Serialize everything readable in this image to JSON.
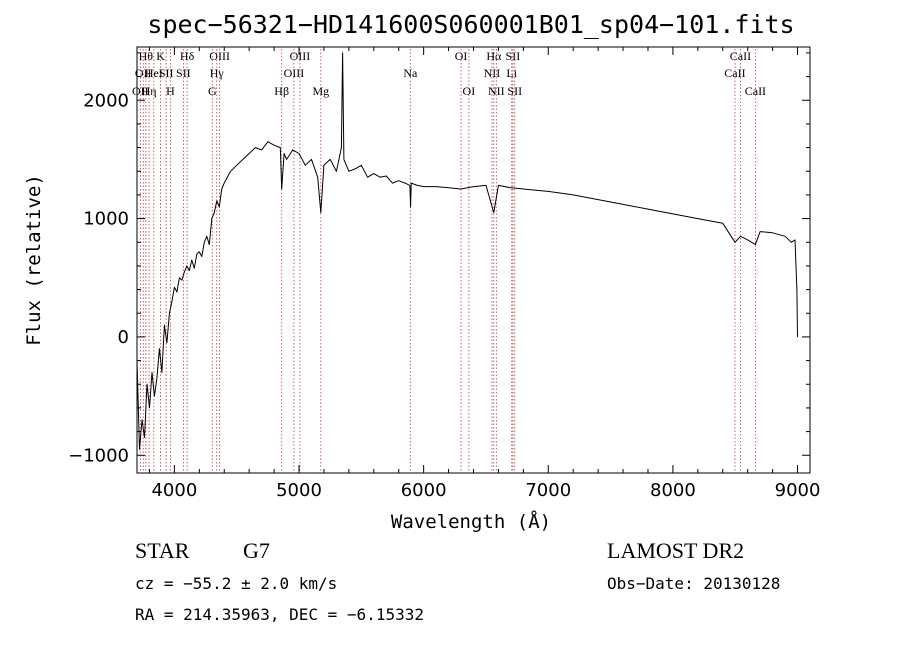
{
  "chart_data": {
    "type": "line",
    "title": "spec−56321−HD141600S060001B01_sp04−101.fits",
    "xlabel": "Wavelength (Å)",
    "ylabel": "Flux (relative)",
    "xlim": [
      3700,
      9100
    ],
    "ylim": [
      -1150,
      2450
    ],
    "x_ticks": [
      {
        "value": 4000,
        "label": "4000"
      },
      {
        "value": 5000,
        "label": "5000"
      },
      {
        "value": 6000,
        "label": "6000"
      },
      {
        "value": 7000,
        "label": "7000"
      },
      {
        "value": 8000,
        "label": "8000"
      },
      {
        "value": 9000,
        "label": "9000"
      }
    ],
    "y_ticks": [
      {
        "value": -1000,
        "label": "−1000"
      },
      {
        "value": 0,
        "label": "0"
      },
      {
        "value": 1000,
        "label": "1000"
      },
      {
        "value": 2000,
        "label": "2000"
      }
    ],
    "series": [
      {
        "color": "#000000",
        "x": [
          3700,
          3720,
          3740,
          3760,
          3780,
          3800,
          3820,
          3840,
          3860,
          3880,
          3900,
          3920,
          3940,
          3960,
          3980,
          4000,
          4020,
          4040,
          4060,
          4080,
          4100,
          4120,
          4140,
          4160,
          4180,
          4200,
          4220,
          4240,
          4260,
          4280,
          4300,
          4320,
          4340,
          4360,
          4380,
          4400,
          4450,
          4500,
          4550,
          4600,
          4650,
          4700,
          4750,
          4800,
          4850,
          4861,
          4880,
          4900,
          4950,
          5000,
          5050,
          5100,
          5150,
          5175,
          5200,
          5250,
          5300,
          5340,
          5350,
          5360,
          5400,
          5450,
          5500,
          5550,
          5600,
          5650,
          5700,
          5750,
          5800,
          5850,
          5890,
          5895,
          5900,
          5950,
          6000,
          6100,
          6200,
          6300,
          6400,
          6500,
          6563,
          6600,
          6700,
          6800,
          6900,
          7000,
          7200,
          7400,
          7600,
          7800,
          8000,
          8200,
          8400,
          8498,
          8542,
          8600,
          8662,
          8700,
          8800,
          8900,
          8950,
          8980,
          8995,
          9000
        ],
        "y": [
          -200,
          -950,
          -700,
          -850,
          -400,
          -600,
          -300,
          -500,
          -350,
          -100,
          -300,
          100,
          -50,
          200,
          300,
          420,
          380,
          500,
          480,
          550,
          600,
          560,
          650,
          580,
          700,
          720,
          680,
          800,
          850,
          780,
          1000,
          1050,
          1150,
          1100,
          1250,
          1300,
          1400,
          1450,
          1500,
          1550,
          1600,
          1580,
          1650,
          1620,
          1600,
          1250,
          1550,
          1500,
          1580,
          1550,
          1450,
          1500,
          1350,
          1050,
          1450,
          1500,
          1400,
          1600,
          2400,
          1500,
          1400,
          1420,
          1450,
          1350,
          1380,
          1350,
          1360,
          1300,
          1320,
          1300,
          1280,
          1100,
          1300,
          1280,
          1270,
          1270,
          1260,
          1250,
          1270,
          1280,
          1050,
          1280,
          1260,
          1250,
          1240,
          1230,
          1200,
          1160,
          1120,
          1080,
          1040,
          1000,
          960,
          800,
          850,
          820,
          780,
          890,
          880,
          850,
          800,
          820,
          400,
          0
        ]
      }
    ],
    "spectral_lines": [
      {
        "wl": 3727,
        "label": "OII",
        "row": 2
      },
      {
        "wl": 3750,
        "label": "OII",
        "row": 1
      },
      {
        "wl": 3771,
        "label": "Hθ",
        "row": 0
      },
      {
        "wl": 3797,
        "label": "Hη",
        "row": 2
      },
      {
        "wl": 3835,
        "label": "HeI",
        "row": 1
      },
      {
        "wl": 3889,
        "label": "K",
        "row": 0
      },
      {
        "wl": 3934,
        "label": "SII",
        "row": 1
      },
      {
        "wl": 3968,
        "label": "H",
        "row": 2
      },
      {
        "wl": 4072,
        "label": "SII",
        "row": 1
      },
      {
        "wl": 4102,
        "label": "Hδ",
        "row": 0
      },
      {
        "wl": 4304,
        "label": "G",
        "row": 2
      },
      {
        "wl": 4340,
        "label": "Hγ",
        "row": 1
      },
      {
        "wl": 4363,
        "label": "OIII",
        "row": 0
      },
      {
        "wl": 4861,
        "label": "Hβ",
        "row": 2
      },
      {
        "wl": 4959,
        "label": "OIII",
        "row": 1
      },
      {
        "wl": 5007,
        "label": "OIII",
        "row": 0
      },
      {
        "wl": 5175,
        "label": "Mg",
        "row": 2
      },
      {
        "wl": 5893,
        "label": "Na",
        "row": 1
      },
      {
        "wl": 6300,
        "label": "OI",
        "row": 0
      },
      {
        "wl": 6363,
        "label": "OI",
        "row": 2
      },
      {
        "wl": 6548,
        "label": "NII",
        "row": 1
      },
      {
        "wl": 6563,
        "label": "Hα",
        "row": 0
      },
      {
        "wl": 6583,
        "label": "NII",
        "row": 2
      },
      {
        "wl": 6707,
        "label": "Li",
        "row": 1
      },
      {
        "wl": 6716,
        "label": "SII",
        "row": 0
      },
      {
        "wl": 6731,
        "label": "SII",
        "row": 2
      },
      {
        "wl": 8498,
        "label": "CaII",
        "row": 1
      },
      {
        "wl": 8542,
        "label": "CaII",
        "row": 0
      },
      {
        "wl": 8662,
        "label": "CaII",
        "row": 2
      }
    ]
  },
  "info": {
    "object_class": "STAR",
    "subclass": "G7",
    "survey": "LAMOST DR2",
    "cz": "cz = −55.2 ± 2.0 km/s",
    "obs_date": "Obs−Date: 20130128",
    "coords": "RA = 214.35963, DEC =  −6.15332"
  }
}
